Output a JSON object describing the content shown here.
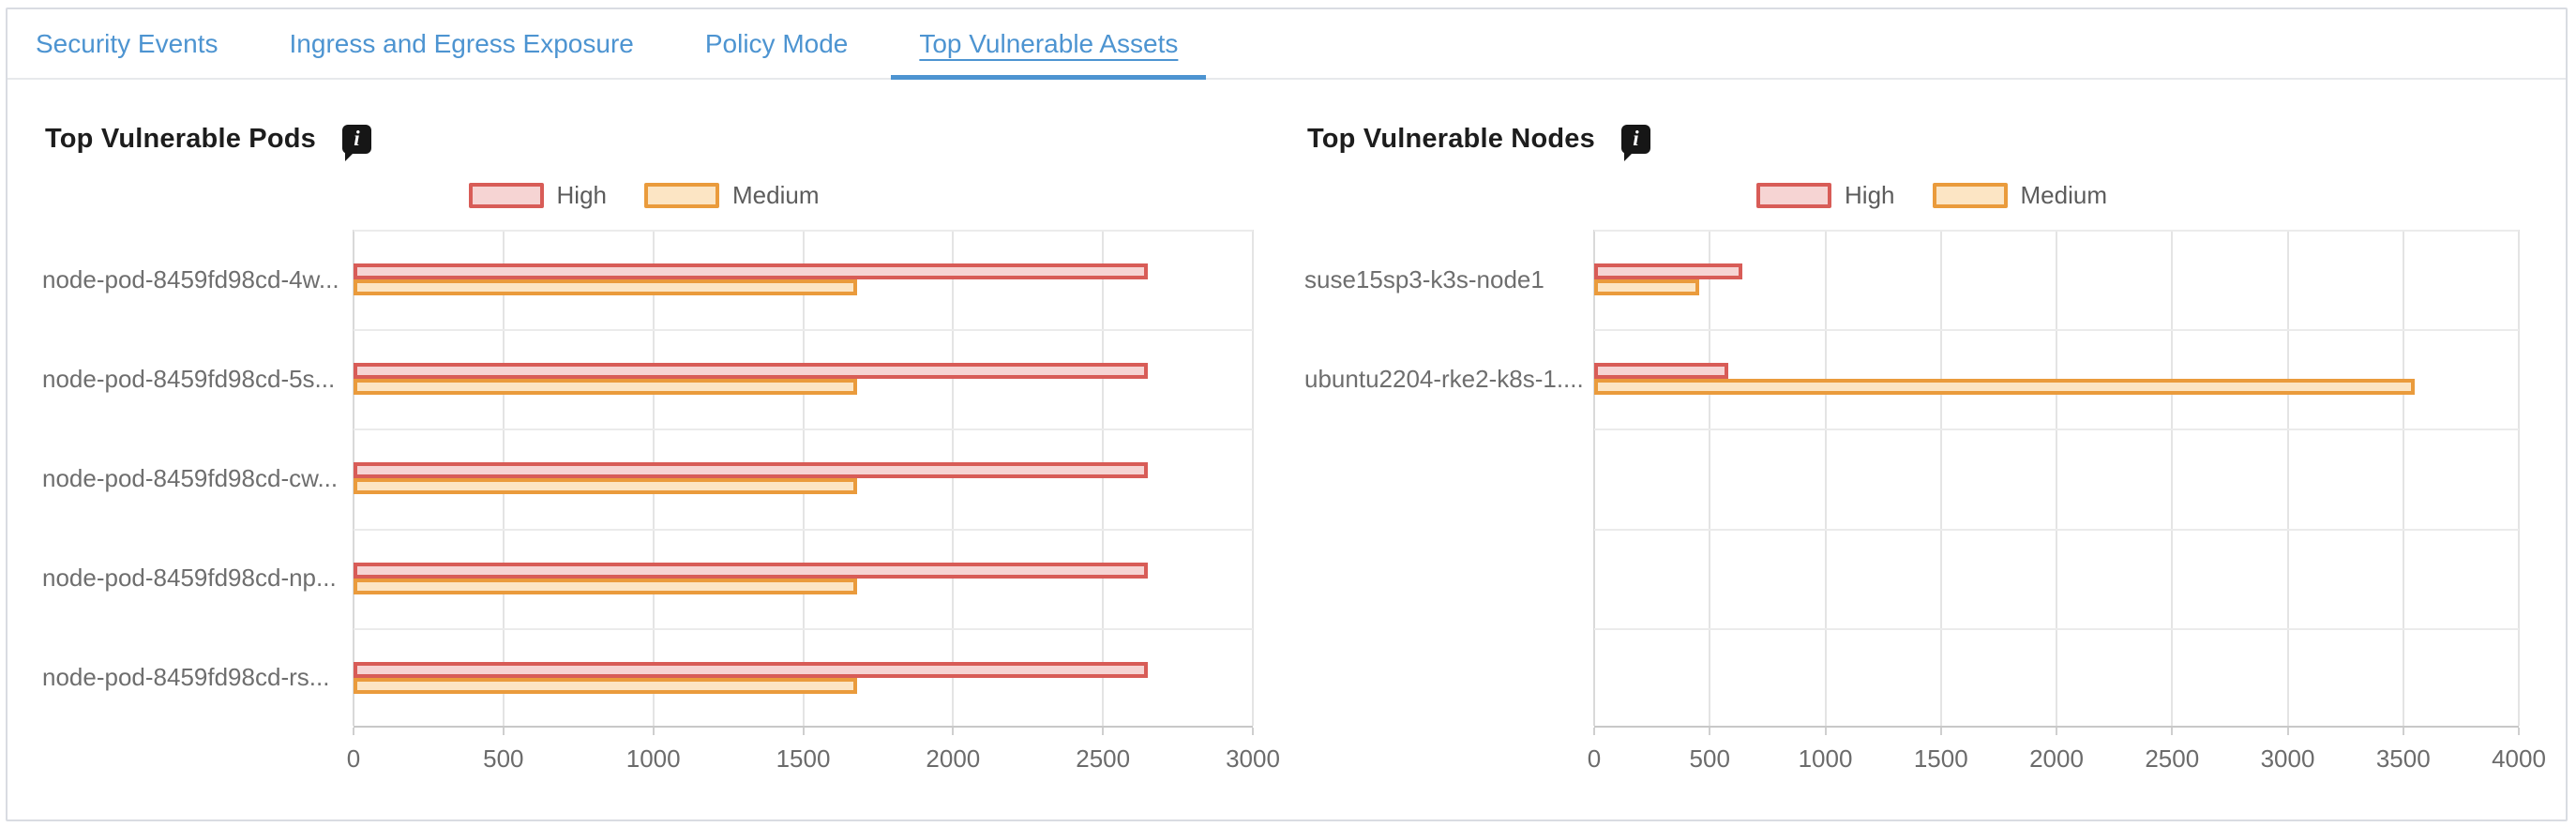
{
  "tabs": {
    "items": [
      {
        "label": "Security Events"
      },
      {
        "label": "Ingress and Egress Exposure"
      },
      {
        "label": "Policy Mode"
      },
      {
        "label": "Top Vulnerable Assets"
      }
    ],
    "active_index": 3
  },
  "colors": {
    "tab_blue": "#4d94d1",
    "high_border": "#d85c57",
    "high_fill": "#f6d4d3",
    "medium_border": "#ea9b3c",
    "medium_fill": "#fce5c4"
  },
  "chart_data": [
    {
      "type": "bar",
      "orientation": "horizontal",
      "title": "Top Vulnerable Pods",
      "info_icon": "info-tooltip-icon",
      "categories": [
        "node-pod-8459fd98cd-4w...",
        "node-pod-8459fd98cd-5s...",
        "node-pod-8459fd98cd-cw...",
        "node-pod-8459fd98cd-np...",
        "node-pod-8459fd98cd-rs..."
      ],
      "series": [
        {
          "name": "High",
          "values": [
            2650,
            2650,
            2650,
            2650,
            2650
          ]
        },
        {
          "name": "Medium",
          "values": [
            1680,
            1680,
            1680,
            1680,
            1680
          ]
        }
      ],
      "xlim": [
        0,
        3000
      ],
      "xticks": [
        0,
        500,
        1000,
        1500,
        2000,
        2500,
        3000
      ],
      "grid": true,
      "legend_position": "top-center"
    },
    {
      "type": "bar",
      "orientation": "horizontal",
      "title": "Top Vulnerable Nodes",
      "info_icon": "info-tooltip-icon",
      "categories": [
        "suse15sp3-k3s-node1",
        "ubuntu2204-rke2-k8s-1...."
      ],
      "series": [
        {
          "name": "High",
          "values": [
            640,
            580
          ]
        },
        {
          "name": "Medium",
          "values": [
            455,
            3550
          ]
        }
      ],
      "xlim": [
        0,
        4000
      ],
      "xticks": [
        0,
        500,
        1000,
        1500,
        2000,
        2500,
        3000,
        3500,
        4000
      ],
      "grid": true,
      "legend_position": "top-center"
    }
  ]
}
